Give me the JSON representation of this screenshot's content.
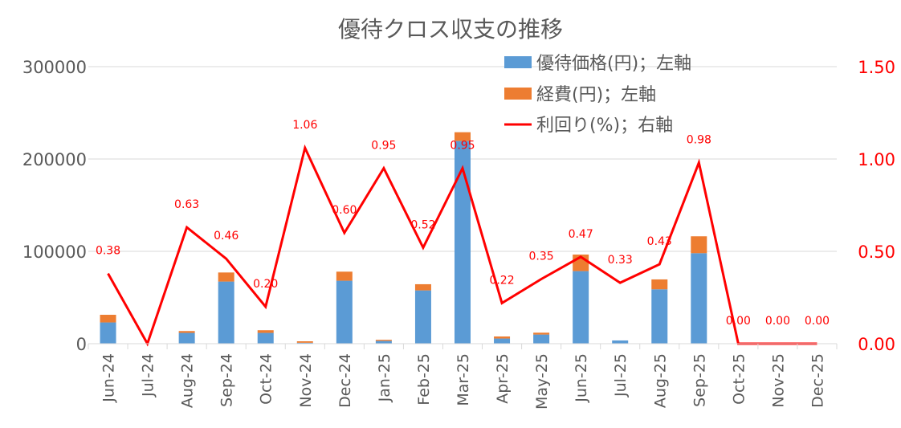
{
  "chart_data": {
    "type": "bar+line",
    "title": "優待クロス収支の推移",
    "categories": [
      "Jun-24",
      "Jul-24",
      "Aug-24",
      "Sep-24",
      "Oct-24",
      "Nov-24",
      "Dec-24",
      "Jan-25",
      "Feb-25",
      "Mar-25",
      "Apr-25",
      "May-25",
      "Jun-25",
      "Jul-25",
      "Aug-25",
      "Sep-25",
      "Oct-25",
      "Nov-25",
      "Dec-25"
    ],
    "left_axis": {
      "ylim": [
        0,
        300000
      ],
      "ticks": [
        "0",
        "100000",
        "200000",
        "300000"
      ]
    },
    "right_axis": {
      "ylim": [
        0,
        1.5
      ],
      "ticks": [
        "0.00",
        "0.50",
        "1.00",
        "1.50"
      ]
    },
    "series": [
      {
        "name": "優待価格(円)；左軸",
        "type": "stacked-bar",
        "axis": "left",
        "color": "#5B9BD5",
        "values": [
          23000,
          0,
          11700,
          67300,
          11700,
          1000,
          68200,
          3000,
          57700,
          219500,
          5600,
          9900,
          78600,
          3500,
          58900,
          98000,
          0,
          0,
          0
        ]
      },
      {
        "name": "経費(円)；左軸",
        "type": "stacked-bar",
        "axis": "left",
        "color": "#ED7D31",
        "values": [
          8300,
          0,
          2000,
          9800,
          2900,
          1600,
          9800,
          1200,
          6700,
          9500,
          2200,
          2000,
          17900,
          0,
          10700,
          18300,
          0,
          0,
          0
        ]
      },
      {
        "name": "利回り(%)；右軸",
        "type": "line",
        "axis": "right",
        "color": "#FF0000",
        "values": [
          0.38,
          0,
          0.63,
          0.46,
          0.2,
          1.06,
          0.6,
          0.95,
          0.52,
          0.95,
          0.22,
          0.35,
          0.47,
          0.33,
          0.43,
          0.98,
          0,
          0,
          0
        ],
        "labels": [
          "0.38",
          null,
          "0.63",
          "0.46",
          "0.20",
          "1.06",
          "0.60",
          "0.95",
          "0.52",
          "0.95",
          "0.22",
          "0.35",
          "0.47",
          "0.33",
          "0.43",
          "0.98",
          "0.00",
          "0.00",
          "0.00"
        ]
      }
    ],
    "legend": "top-right",
    "grid": true
  }
}
